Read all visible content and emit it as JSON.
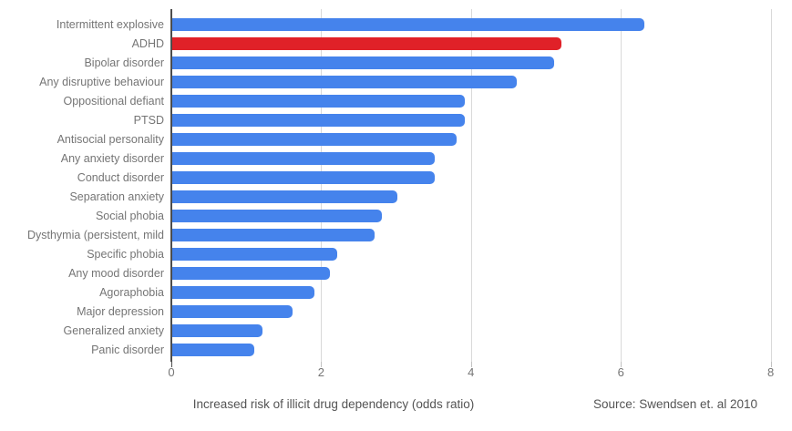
{
  "chart_data": {
    "type": "bar",
    "orientation": "horizontal",
    "title": "",
    "categories": [
      "Intermittent explosive",
      "ADHD",
      "Bipolar disorder",
      "Any disruptive behaviour",
      "Oppositional defiant",
      "PTSD",
      "Antisocial personality",
      "Any anxiety disorder",
      "Conduct disorder",
      "Separation anxiety",
      "Social phobia",
      "Dysthymia (persistent, mild",
      "Specific phobia",
      "Any mood disorder",
      "Agoraphobia",
      "Major depression",
      "Generalized anxiety",
      "Panic disorder"
    ],
    "values": [
      6.3,
      5.2,
      5.1,
      4.6,
      3.9,
      3.9,
      3.8,
      3.5,
      3.5,
      3.0,
      2.8,
      2.7,
      2.2,
      2.1,
      1.9,
      1.6,
      1.2,
      1.1
    ],
    "highlight_category": "ADHD",
    "bar_color": "#4583ec",
    "highlight_color": "#e02128",
    "gridline_color": "#d9d9d9",
    "axis_color": "#4d4d4d",
    "label_color": "#757575",
    "xticks": [
      0,
      2,
      4,
      6,
      8
    ],
    "xlim": [
      0,
      8
    ],
    "grid": true,
    "legend": "none",
    "xlabel": "Increased risk of illicit drug dependency (odds ratio)",
    "source": "Source: Swendsen et. al 2010"
  }
}
